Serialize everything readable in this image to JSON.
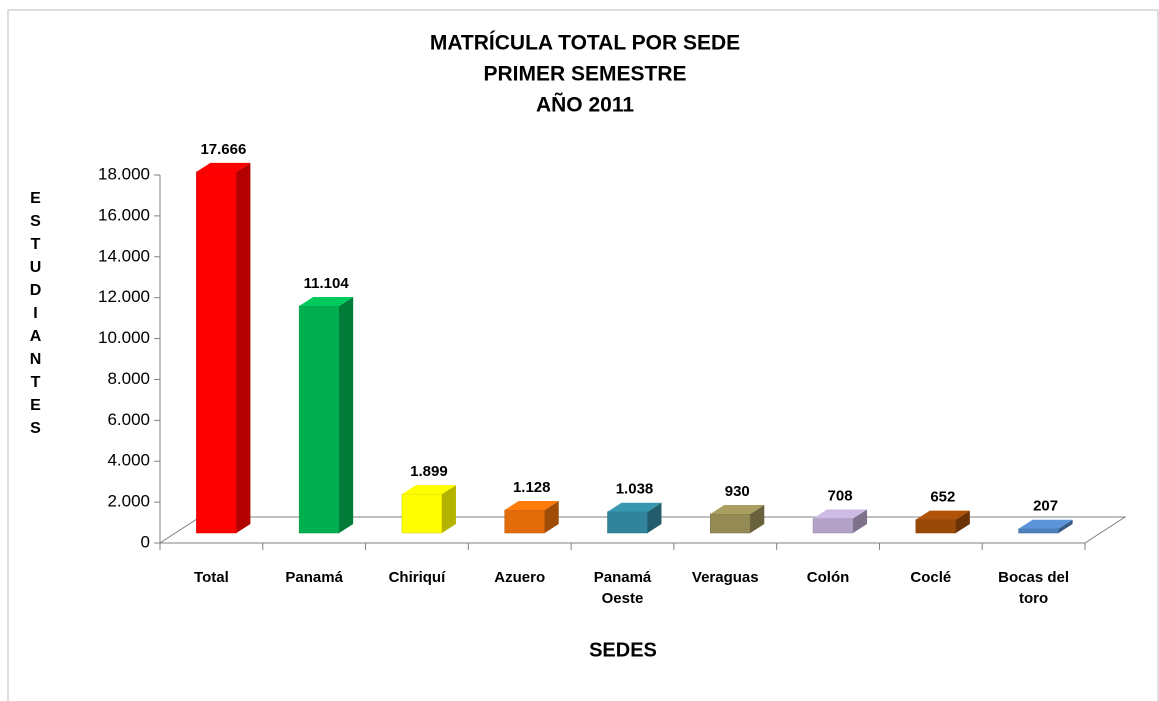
{
  "chart_data": {
    "type": "bar3d",
    "title": [
      "MATRÍCULA TOTAL POR SEDE",
      "PRIMER SEMESTRE",
      "AÑO 2011"
    ],
    "x_label": "SEDES",
    "y_label": "ESTUDIANTES",
    "categories": [
      "Total",
      "Panamá",
      "Chiriquí",
      "Azuero",
      "Panamá Oeste",
      "Veraguas",
      "Colón",
      "Coclé",
      "Bocas del toro"
    ],
    "values": [
      17666,
      11104,
      1899,
      1128,
      1038,
      930,
      708,
      652,
      207
    ],
    "value_labels": [
      "17.666",
      "11.104",
      "1.899",
      "1.128",
      "1.038",
      "930",
      "708",
      "652",
      "207"
    ],
    "colors": [
      "#ff0000",
      "#00b050",
      "#ffff00",
      "#e36c0a",
      "#31849b",
      "#948a54",
      "#b3a2c7",
      "#984807",
      "#4f81bd"
    ],
    "ylim": [
      0,
      18000
    ],
    "yticks": [
      0,
      {
        "value": 2000,
        "label": "2.000"
      },
      {
        "value": 4000,
        "label": "4.000"
      },
      {
        "value": 6000,
        "label": "6.000"
      },
      {
        "value": 8000,
        "label": "8.000"
      },
      {
        "value": 10000,
        "label": "10.000"
      },
      {
        "value": 12000,
        "label": "12.000"
      },
      {
        "value": 14000,
        "label": "14.000"
      },
      {
        "value": 16000,
        "label": "16.000"
      },
      {
        "value": 18000,
        "label": "18.000"
      }
    ]
  }
}
